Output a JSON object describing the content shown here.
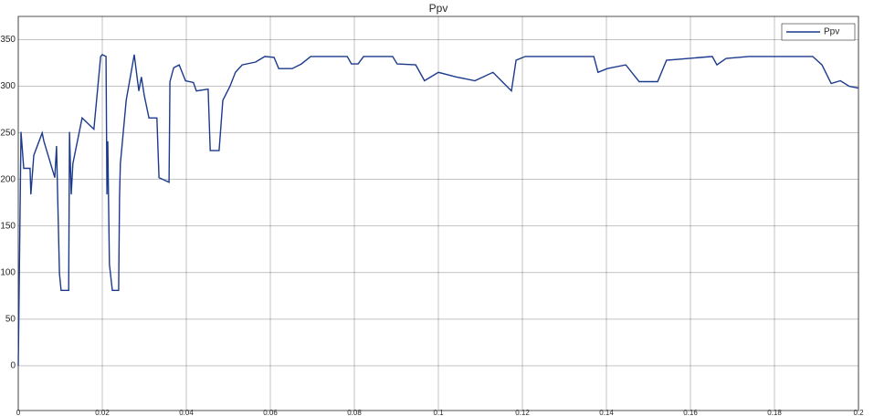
{
  "chart_data": {
    "type": "line",
    "title": "Ppv",
    "x": [
      0,
      0.00065,
      0.0013,
      0.0028,
      0.003,
      0.0037,
      0.0057,
      0.0061,
      0.0087,
      0.0091,
      0.0093,
      0.0098,
      0.0102,
      0.012,
      0.0122,
      0.0126,
      0.013,
      0.0152,
      0.018,
      0.0196,
      0.02,
      0.0209,
      0.0211,
      0.0213,
      0.0217,
      0.0224,
      0.0239,
      0.0241,
      0.0243,
      0.0257,
      0.0276,
      0.0287,
      0.0293,
      0.03,
      0.0311,
      0.033,
      0.0335,
      0.0359,
      0.0361,
      0.037,
      0.0383,
      0.0398,
      0.0417,
      0.0424,
      0.0452,
      0.0457,
      0.0478,
      0.0487,
      0.0504,
      0.0517,
      0.0533,
      0.0565,
      0.0587,
      0.0609,
      0.062,
      0.0652,
      0.0674,
      0.0696,
      0.0783,
      0.0793,
      0.0809,
      0.0822,
      0.0891,
      0.0902,
      0.0946,
      0.0967,
      0.1,
      0.1043,
      0.1087,
      0.113,
      0.1152,
      0.1174,
      0.1185,
      0.1207,
      0.137,
      0.138,
      0.1402,
      0.1446,
      0.1478,
      0.1522,
      0.1543,
      0.1652,
      0.1663,
      0.1685,
      0.1739,
      0.1891,
      0.1913,
      0.1935,
      0.1957,
      0.1978,
      0.2
    ],
    "series": [
      {
        "name": "Ppv",
        "color": "#1c3a8c",
        "values": [
          0,
          251,
          212,
          212,
          184,
          226,
          250,
          241,
          202,
          236,
          197,
          99,
          81,
          81,
          251,
          184,
          217,
          266,
          254,
          332,
          334,
          332,
          184,
          241,
          109,
          81,
          81,
          182,
          217,
          285,
          334,
          295,
          310,
          290,
          266,
          266,
          202,
          197,
          305,
          320,
          323,
          306,
          304,
          295,
          297,
          231,
          231,
          285,
          300,
          315,
          323,
          326,
          332,
          331,
          319,
          319,
          324,
          332,
          332,
          324,
          324,
          332,
          332,
          324,
          323,
          306,
          315,
          310,
          306,
          315,
          305,
          295,
          328,
          332,
          332,
          315,
          319,
          323,
          305,
          305,
          328,
          332,
          323,
          330,
          332,
          332,
          323,
          303,
          306,
          300,
          298
        ]
      }
    ],
    "xlim": [
      0,
      0.2
    ],
    "xticks": [
      0,
      0.02,
      0.04,
      0.06,
      0.08,
      0.1,
      0.12,
      0.14,
      0.16,
      0.18,
      0.2
    ],
    "ylim": [
      -48,
      375
    ],
    "yticks": [
      0,
      50,
      100,
      150,
      200,
      250,
      300,
      350
    ],
    "grid": true,
    "legend": "top-right"
  }
}
